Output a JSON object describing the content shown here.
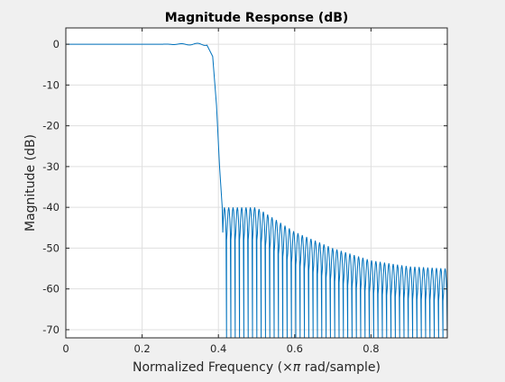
{
  "chart_data": {
    "type": "line",
    "title": "Magnitude Response (dB)",
    "xlabel_prefix": "Normalized Frequency  (",
    "xlabel_pi": "×π",
    "xlabel_suffix": " rad/sample)",
    "ylabel": "Magnitude (dB)",
    "xlim": [
      0,
      1
    ],
    "ylim": [
      -72,
      4
    ],
    "xticks": [
      0,
      0.2,
      0.4,
      0.6,
      0.8
    ],
    "xtick_labels": [
      "0",
      "0.2",
      "0.4",
      "0.6",
      "0.8"
    ],
    "yticks": [
      0,
      -10,
      -20,
      -30,
      -40,
      -50,
      -60,
      -70
    ],
    "ytick_labels": [
      "0",
      "-10",
      "-20",
      "-30",
      "-40",
      "-50",
      "-60",
      "-70"
    ],
    "grid": true,
    "series": [
      {
        "color": "#0072bd",
        "passband_edge": 0.4,
        "passband_ripple_db": 0.3,
        "passband_ripple_start": 0.25,
        "transition": [
          [
            0.37,
            0
          ],
          [
            0.385,
            -3
          ],
          [
            0.395,
            -15
          ],
          [
            0.403,
            -30
          ],
          [
            0.41,
            -40
          ]
        ],
        "stopband_envelope": [
          [
            0.41,
            -40
          ],
          [
            0.5,
            -40
          ],
          [
            0.55,
            -43
          ],
          [
            0.6,
            -46
          ],
          [
            0.7,
            -50
          ],
          [
            0.8,
            -53
          ],
          [
            0.9,
            -54.5
          ],
          [
            1.0,
            -55
          ]
        ],
        "stopband_lobes": 52,
        "stopband_floor": -72
      }
    ]
  }
}
